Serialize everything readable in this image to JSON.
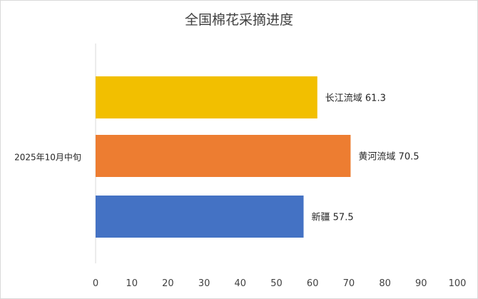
{
  "chart_data": {
    "type": "bar",
    "orientation": "horizontal",
    "title": "全国棉花采摘进度",
    "category": "2025年10月中旬",
    "series": [
      {
        "name": "长江流域",
        "value": 61.3,
        "label": "长江流域 61.3",
        "color": "#F2BF00"
      },
      {
        "name": "黄河流域",
        "value": 70.5,
        "label": "黄河流域 70.5",
        "color": "#ED7D31"
      },
      {
        "name": "新疆",
        "value": 57.5,
        "label": "新疆 57.5",
        "color": "#4472C4"
      }
    ],
    "xlim": [
      0,
      100
    ],
    "xticks": [
      0,
      10,
      20,
      30,
      40,
      50,
      60,
      70,
      80,
      90,
      100
    ],
    "grid": false,
    "legend": "none"
  }
}
